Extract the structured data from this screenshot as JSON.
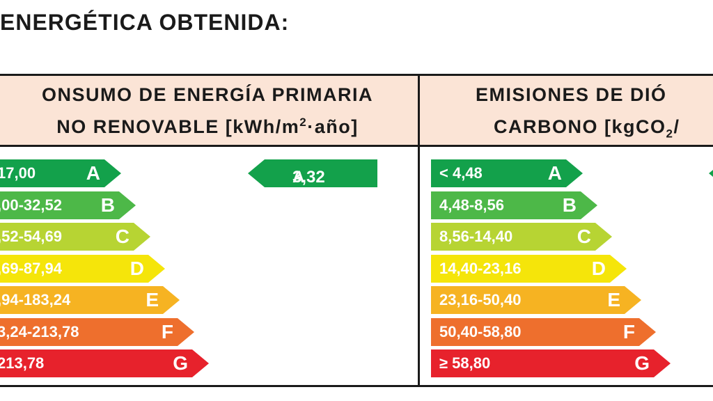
{
  "page": {
    "heading": "ENERGÉTICA OBTENIDA:"
  },
  "primary": {
    "title_line1": "ONSUMO DE ENERGÍA PRIMARIA",
    "title_line2_prefix": "NO RENOVABLE [kWh/m",
    "title_superscript": "2",
    "title_line2_suffix": "·año]",
    "classes": [
      {
        "range": "17,00",
        "letter": "A",
        "color": "#13a14b"
      },
      {
        "range": ",00-32,52",
        "letter": "B",
        "color": "#4db848"
      },
      {
        "range": ",52-54,69",
        "letter": "C",
        "color": "#b7d433"
      },
      {
        "range": ",69-87,94",
        "letter": "D",
        "color": "#f5e50a"
      },
      {
        "range": ",94-183,24",
        "letter": "E",
        "color": "#f6b322"
      },
      {
        "range": "3,24-213,78",
        "letter": "F",
        "color": "#ee6f2d"
      },
      {
        "range": "213,78",
        "letter": "G",
        "color": "#e7222c"
      }
    ],
    "rating": {
      "value": "3,32",
      "letter": "A",
      "color": "#13a14b"
    }
  },
  "emissions": {
    "title_line1": "EMISIONES DE DIÓ",
    "title_line2_prefix": "CARBONO [kgCO",
    "title_subscript": "2",
    "title_line2_suffix": "/",
    "classes": [
      {
        "range": "< 4,48",
        "letter": "A",
        "color": "#13a14b"
      },
      {
        "range": "4,48-8,56",
        "letter": "B",
        "color": "#4db848"
      },
      {
        "range": "8,56-14,40",
        "letter": "C",
        "color": "#b7d433"
      },
      {
        "range": "14,40-23,16",
        "letter": "D",
        "color": "#f5e50a"
      },
      {
        "range": "23,16-50,40",
        "letter": "E",
        "color": "#f6b322"
      },
      {
        "range": "50,40-58,80",
        "letter": "F",
        "color": "#ee6f2d"
      },
      {
        "range": "≥ 58,80",
        "letter": "G",
        "color": "#e7222c"
      }
    ],
    "rating_color": "#13a14b"
  }
}
